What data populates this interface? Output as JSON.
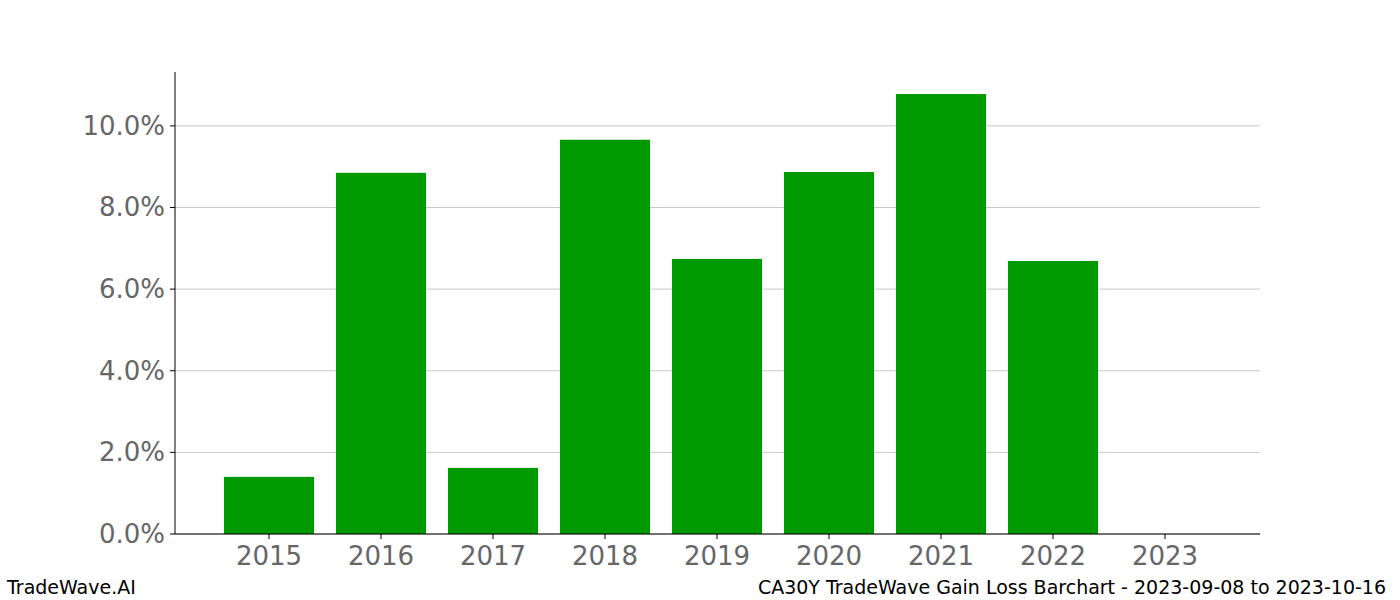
{
  "chart_data": {
    "type": "bar",
    "title": "CA30Y TradeWave Gain Loss Barchart - 2023-09-08 to 2023-10-16",
    "annotations": [
      "TradeWave.AI"
    ],
    "categories": [
      "2015",
      "2016",
      "2017",
      "2018",
      "2019",
      "2020",
      "2021",
      "2022",
      "2023"
    ],
    "values": [
      1.4,
      8.85,
      1.62,
      9.66,
      6.74,
      8.87,
      10.78,
      6.69,
      0
    ],
    "color": "#009900",
    "ylim": [
      0,
      11.32
    ],
    "yticks": [
      {
        "value": 0,
        "label": "0.0%"
      },
      {
        "value": 2,
        "label": "2.0%"
      },
      {
        "value": 4,
        "label": "4.0%"
      },
      {
        "value": 6,
        "label": "6.0%"
      },
      {
        "value": 8,
        "label": "8.0%"
      },
      {
        "value": 10,
        "label": "10.0%"
      }
    ],
    "grid": true
  }
}
